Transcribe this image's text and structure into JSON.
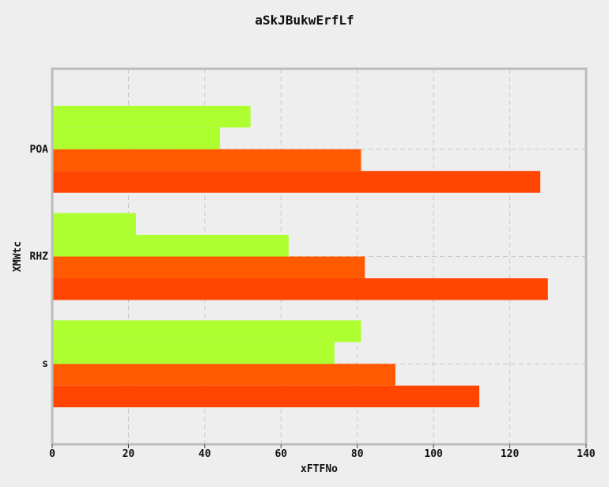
{
  "chart_data": {
    "type": "bar",
    "orientation": "horizontal",
    "title": "aSkJBukwErfLf",
    "xlabel": "xFTFNo",
    "ylabel": "XMWtc",
    "categories": [
      "s",
      "RHZ",
      "POA"
    ],
    "xlim": [
      0,
      140
    ],
    "xticks": [
      0,
      20,
      40,
      60,
      80,
      100,
      120,
      140
    ],
    "grid": true,
    "legend": "none",
    "series": [
      {
        "color": "#ff4500",
        "values": [
          112,
          130,
          128
        ]
      },
      {
        "color": "#ff5a00",
        "values": [
          90,
          82,
          81
        ]
      },
      {
        "color": "#adff2f",
        "values": [
          74,
          62,
          44
        ]
      },
      {
        "color": "#adff2f",
        "values": [
          81,
          22,
          52
        ]
      }
    ]
  }
}
